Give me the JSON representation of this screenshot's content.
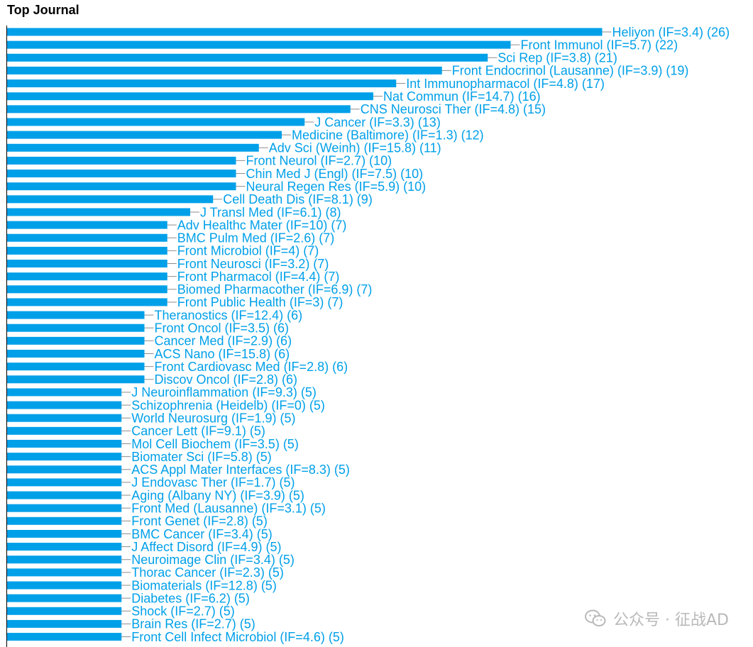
{
  "chart_data": {
    "type": "bar",
    "orientation": "horizontal",
    "title": "Top Journal",
    "xlabel": "",
    "ylabel": "",
    "xlim": [
      0,
      26
    ],
    "grid": false,
    "bar_color": "#00a0e9",
    "label_color": "#00a0e9",
    "axis_color": "#000000",
    "categories": [
      "Heliyon (IF=3.4) (26)",
      "Front Immunol (IF=5.7) (22)",
      "Sci Rep (IF=3.8) (21)",
      "Front Endocrinol (Lausanne) (IF=3.9) (19)",
      "Int Immunopharmacol (IF=4.8) (17)",
      "Nat Commun (IF=14.7) (16)",
      "CNS Neurosci Ther (IF=4.8) (15)",
      "J Cancer (IF=3.3) (13)",
      "Medicine (Baltimore) (IF=1.3) (12)",
      "Adv Sci (Weinh) (IF=15.8) (11)",
      "Front Neurol (IF=2.7) (10)",
      "Chin Med J (Engl) (IF=7.5) (10)",
      "Neural Regen Res (IF=5.9) (10)",
      "Cell Death Dis (IF=8.1) (9)",
      "J Transl Med (IF=6.1) (8)",
      "Adv Healthc Mater (IF=10) (7)",
      "BMC Pulm Med (IF=2.6) (7)",
      "Front Microbiol (IF=4) (7)",
      "Front Neurosci (IF=3.2) (7)",
      "Front Pharmacol (IF=4.4) (7)",
      "Biomed Pharmacother (IF=6.9) (7)",
      "Front Public Health (IF=3) (7)",
      "Theranostics (IF=12.4) (6)",
      "Front Oncol (IF=3.5) (6)",
      "Cancer Med (IF=2.9) (6)",
      "ACS Nano (IF=15.8) (6)",
      "Front Cardiovasc Med (IF=2.8) (6)",
      "Discov Oncol (IF=2.8) (6)",
      "J Neuroinflammation (IF=9.3) (5)",
      "Schizophrenia (Heidelb) (IF=0) (5)",
      "World Neurosurg (IF=1.9) (5)",
      "Cancer Lett (IF=9.1) (5)",
      "Mol Cell Biochem (IF=3.5) (5)",
      "Biomater Sci (IF=5.8) (5)",
      "ACS Appl Mater Interfaces (IF=8.3) (5)",
      "J Endovasc Ther (IF=1.7) (5)",
      "Aging (Albany NY) (IF=3.9) (5)",
      "Front Med (Lausanne) (IF=3.1) (5)",
      "Front Genet (IF=2.8) (5)",
      "BMC Cancer (IF=3.4) (5)",
      "J Affect Disord (IF=4.9) (5)",
      "Neuroimage Clin (IF=3.4) (5)",
      "Thorac Cancer (IF=2.3) (5)",
      "Biomaterials (IF=12.8) (5)",
      "Diabetes (IF=6.2) (5)",
      "Shock (IF=2.7) (5)",
      "Brain Res (IF=2.7) (5)",
      "Front Cell Infect Microbiol (IF=4.6) (5)"
    ],
    "values": [
      26,
      22,
      21,
      19,
      17,
      16,
      15,
      13,
      12,
      11,
      10,
      10,
      10,
      9,
      8,
      7,
      7,
      7,
      7,
      7,
      7,
      7,
      6,
      6,
      6,
      6,
      6,
      6,
      5,
      5,
      5,
      5,
      5,
      5,
      5,
      5,
      5,
      5,
      5,
      5,
      5,
      5,
      5,
      5,
      5,
      5,
      5,
      5
    ]
  },
  "watermark": {
    "text": "公众号 · 征战AD",
    "icon": "wechat-icon",
    "color": "#b9b9b9"
  }
}
